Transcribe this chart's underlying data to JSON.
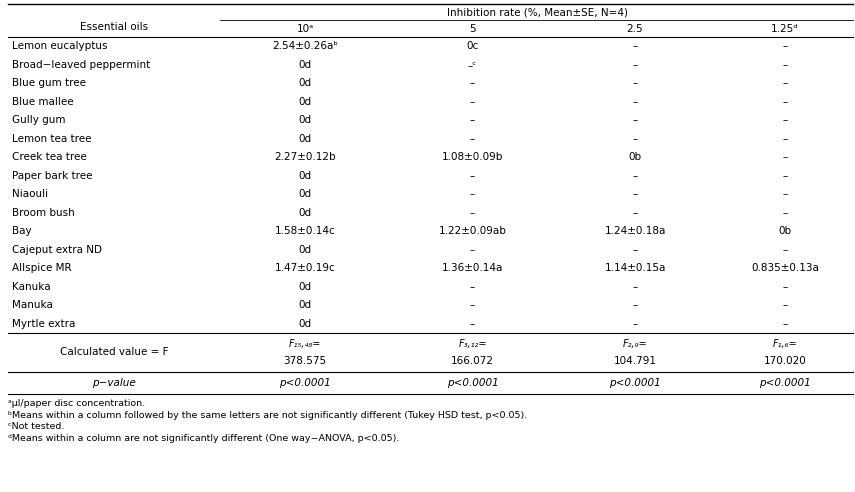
{
  "title": "Inhibition rate (%, Mean±SE, N=4)",
  "col_headers": [
    "Essential oils",
    "10ᵃ",
    "5",
    "2.5",
    "1.25ᵈ"
  ],
  "rows": [
    [
      "Lemon eucalyptus",
      "2.54±0.26aᵇ",
      "0c",
      "–",
      "–"
    ],
    [
      "Broad−leaved peppermint",
      "0d",
      "–ᶜ",
      "–",
      "–"
    ],
    [
      "Blue gum tree",
      "0d",
      "–",
      "–",
      "–"
    ],
    [
      "Blue mallee",
      "0d",
      "–",
      "–",
      "–"
    ],
    [
      "Gully gum",
      "0d",
      "–",
      "–",
      "–"
    ],
    [
      "Lemon tea tree",
      "0d",
      "–",
      "–",
      "–"
    ],
    [
      "Creek tea tree",
      "2.27±0.12b",
      "1.08±0.09b",
      "0b",
      "–"
    ],
    [
      "Paper bark tree",
      "0d",
      "–",
      "–",
      "–"
    ],
    [
      "Niaouli",
      "0d",
      "–",
      "–",
      "–"
    ],
    [
      "Broom bush",
      "0d",
      "–",
      "–",
      "–"
    ],
    [
      "Bay",
      "1.58±0.14c",
      "1.22±0.09ab",
      "1.24±0.18a",
      "0b"
    ],
    [
      "Cajeput extra ND",
      "0d",
      "–",
      "–",
      "–"
    ],
    [
      "Allspice MR",
      "1.47±0.19c",
      "1.36±0.14a",
      "1.14±0.15a",
      "0.835±0.13a"
    ],
    [
      "Kanuka",
      "0d",
      "–",
      "–",
      "–"
    ],
    [
      "Manuka",
      "0d",
      "–",
      "–",
      "–"
    ],
    [
      "Myrtle extra",
      "0d",
      "–",
      "–",
      "–"
    ]
  ],
  "calc_row_label": "Calculated value = F",
  "calc_row_line1": [
    "F₁₅,₄₈=",
    "F₃,₁₂=",
    "F₂,₉=",
    "F₁,₆="
  ],
  "calc_row_line2": [
    "378.575",
    "166.072",
    "104.791",
    "170.020"
  ],
  "pvalue_row_label": "p−value",
  "pvalue_row": [
    "p<0.0001",
    "p<0.0001",
    "p<0.0001",
    "p<0.0001"
  ],
  "footnotes": [
    "ᵃμl/paper disc concentration.",
    "ᵇMeans within a column followed by the same letters are not significantly different (Tukey HSD test, p<0.05).",
    "ᶜNot tested.",
    "ᵈMeans within a column are not significantly different (One way−ANOVA, p<0.05)."
  ],
  "bg_color": "#ffffff",
  "text_color": "#000000",
  "fs": 7.5,
  "fn_fs": 6.8
}
